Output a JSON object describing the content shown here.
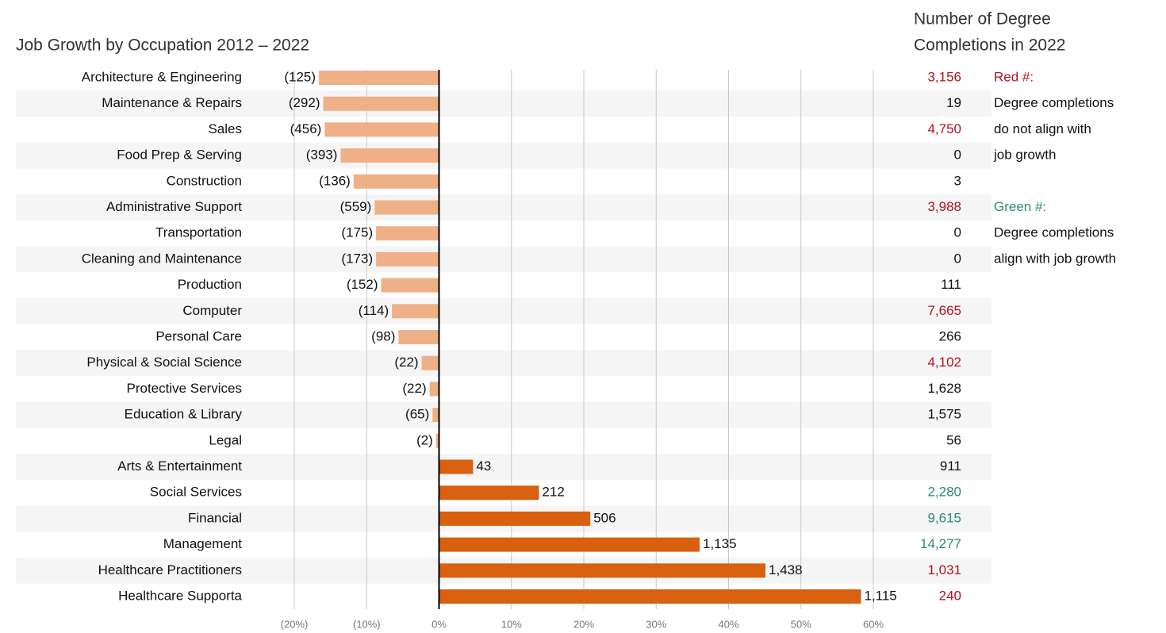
{
  "chart_data": {
    "type": "bar",
    "orientation": "horizontal",
    "title": "Job Growth by Occupation 2012 – 2022",
    "categories": [
      "Architecture & Engineering",
      "Maintenance & Repairs",
      "Sales",
      "Food Prep & Serving",
      "Construction",
      "Administrative Support",
      "Transportation",
      "Cleaning and Maintenance",
      "Production",
      "Computer",
      "Personal Care",
      "Physical & Social Science",
      "Protective Services",
      "Education & Library",
      "Legal",
      "Arts & Entertainment",
      "Social Services",
      "Financial",
      "Management",
      "Healthcare Practitioners",
      "Healthcare Supporta"
    ],
    "values": [
      -16.6,
      -16.0,
      -15.8,
      -13.6,
      -11.8,
      -8.9,
      -8.7,
      -8.7,
      -8.0,
      -6.5,
      -5.6,
      -2.4,
      -1.3,
      -0.9,
      -0.4,
      4.7,
      13.8,
      20.9,
      36.0,
      45.1,
      58.3
    ],
    "job_growth_labels": [
      "(125)",
      "(292)",
      "(456)",
      "(393)",
      "(136)",
      "(559)",
      "(175)",
      "(173)",
      "(152)",
      "(114)",
      "(98)",
      "(22)",
      "(22)",
      "(65)",
      "(2)",
      "43",
      "212",
      "506",
      "1,135",
      "1,438",
      "1,115"
    ],
    "color": "#d9600f",
    "negative_color": "#efb088",
    "xlim": [
      -20,
      60
    ],
    "xticks": [
      {
        "value": -20,
        "label": "(20%)"
      },
      {
        "value": -10,
        "label": "(10%)"
      },
      {
        "value": 0,
        "label": "0%"
      },
      {
        "value": 10,
        "label": "10%"
      },
      {
        "value": 20,
        "label": "20%"
      },
      {
        "value": 30,
        "label": "30%"
      },
      {
        "value": 40,
        "label": "40%"
      },
      {
        "value": 50,
        "label": "50%"
      },
      {
        "value": 60,
        "label": "60%"
      }
    ],
    "grid": true,
    "completions_title": [
      "Number of Degree",
      "Completions in 2022"
    ],
    "completions": [
      "3,156",
      "19",
      "4,750",
      "0",
      "3",
      "3,988",
      "0",
      "0",
      "111",
      "7,665",
      "266",
      "4,102",
      "1,628",
      "1,575",
      "56",
      "911",
      "2,280",
      "9,615",
      "14,277",
      "1,031",
      "240"
    ],
    "completion_colors": [
      "#b5121b",
      "#111111",
      "#b5121b",
      "#111111",
      "#111111",
      "#b5121b",
      "#111111",
      "#111111",
      "#111111",
      "#b5121b",
      "#111111",
      "#b5121b",
      "#111111",
      "#111111",
      "#111111",
      "#111111",
      "#2a8c6e",
      "#2a8c6e",
      "#2a8c6e",
      "#b5121b",
      "#b5121b"
    ],
    "notes": [
      {
        "lines": [
          "Red #:",
          "Degree completions",
          "do not align with",
          "job growth"
        ],
        "color": "#b5121b"
      },
      {
        "lines": [
          "Green #:",
          "Degree completions",
          "align with job growth"
        ],
        "color": "#2a8c6e"
      }
    ]
  }
}
